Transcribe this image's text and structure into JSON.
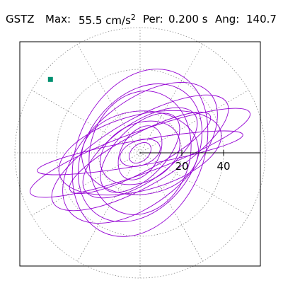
{
  "header": {
    "station": "GSTZ",
    "max_label": "Max:",
    "max_value": "55.5 cm/s",
    "max_exponent": "2",
    "per_label": "Per:",
    "per_value": "0.200 s",
    "ang_label": "Ang:",
    "ang_value": "140.7"
  },
  "chart_data": {
    "type": "scatter",
    "title": "",
    "xlabel": "",
    "ylabel": "",
    "radial_ticks": [
      20,
      40
    ],
    "tick_labels": [
      "20",
      "40"
    ],
    "grid_rings": [
      20,
      40,
      60
    ],
    "grid_spokes_deg": [
      0,
      30,
      60,
      90,
      120,
      150,
      180,
      210,
      240,
      270,
      300,
      330
    ],
    "max_amplitude": 55.5,
    "angle_deg": 140.7,
    "axis_angle_deg": 0,
    "trace_color": "#9400d3",
    "marker_color": "#009070",
    "ellipses": [
      {
        "a": 56,
        "b": 10,
        "tilt": -20
      },
      {
        "a": 48,
        "b": 16,
        "tilt": -30
      },
      {
        "a": 44,
        "b": 24,
        "tilt": -40
      },
      {
        "a": 40,
        "b": 18,
        "tilt": -15
      },
      {
        "a": 36,
        "b": 26,
        "tilt": -55
      },
      {
        "a": 32,
        "b": 14,
        "tilt": -35
      },
      {
        "a": 28,
        "b": 20,
        "tilt": -5
      },
      {
        "a": 24,
        "b": 12,
        "tilt": -45
      },
      {
        "a": 20,
        "b": 14,
        "tilt": -25
      },
      {
        "a": 14,
        "b": 9,
        "tilt": -60
      },
      {
        "a": 10,
        "b": 6,
        "tilt": -20
      },
      {
        "a": 6,
        "b": 4,
        "tilt": -40
      },
      {
        "a": 50,
        "b": 6,
        "tilt": -10
      },
      {
        "a": 42,
        "b": 30,
        "tilt": -65
      },
      {
        "a": 38,
        "b": 9,
        "tilt": -28
      },
      {
        "a": 30,
        "b": 24,
        "tilt": -75
      }
    ],
    "endpoint": {
      "r": 55.5,
      "angle_deg": 140.7
    }
  }
}
